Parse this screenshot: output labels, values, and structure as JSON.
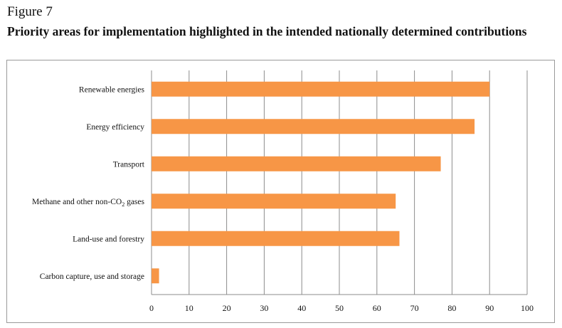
{
  "figure": {
    "label": "Figure 7",
    "title": "Priority areas for implementation highlighted in the intended nationally determined contributions"
  },
  "chart_data": {
    "type": "bar",
    "orientation": "horizontal",
    "title": "",
    "xlabel": "",
    "ylabel": "",
    "categories": [
      {
        "text": "Renewable energies",
        "sub": "",
        "tail": ""
      },
      {
        "text": "Energy efficiency",
        "sub": "",
        "tail": ""
      },
      {
        "text": "Transport",
        "sub": "",
        "tail": ""
      },
      {
        "text": "Methane and other non-CO",
        "sub": "2",
        "tail": " gases"
      },
      {
        "text": "Land-use and forestry",
        "sub": "",
        "tail": ""
      },
      {
        "text": "Carbon capture, use and storage",
        "sub": "",
        "tail": ""
      }
    ],
    "values": [
      90,
      86,
      77,
      65,
      66,
      2
    ],
    "xlim": [
      0,
      100
    ],
    "xticks": [
      0,
      10,
      20,
      30,
      40,
      50,
      60,
      70,
      80,
      90,
      100
    ],
    "grid": "vertical",
    "bar_color": "#F79646",
    "grid_color": "#8c8c8c"
  }
}
